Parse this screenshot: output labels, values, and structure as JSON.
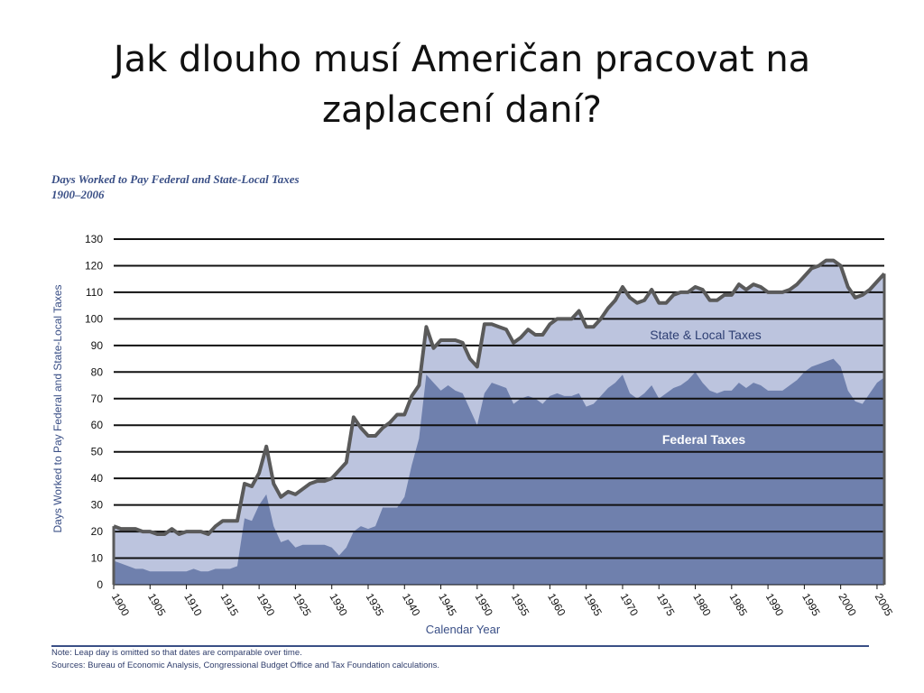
{
  "slide": {
    "title_line1": "Jak dlouho musí Američan pracovat na",
    "title_line2": "zaplacení daní?"
  },
  "chart_data": {
    "type": "area",
    "title_line1": "Days Worked to Pay Federal and State-Local Taxes",
    "title_line2": "1900–2006",
    "ylabel": "Days Worked to Pay Federal and State-Local Taxes",
    "xlabel": "Calendar Year",
    "ylim": [
      0,
      130
    ],
    "yticks": [
      0,
      10,
      20,
      30,
      40,
      50,
      60,
      70,
      80,
      90,
      100,
      110,
      120,
      130
    ],
    "xlim": [
      1900,
      2006
    ],
    "xticks": [
      1900,
      1905,
      1910,
      1915,
      1920,
      1925,
      1930,
      1935,
      1940,
      1945,
      1950,
      1955,
      1960,
      1965,
      1970,
      1975,
      1980,
      1985,
      1990,
      1995,
      2000,
      2005
    ],
    "grid": true,
    "colors": {
      "federal": "#6f80ad",
      "state_local": "#bcc4de",
      "outline": "#5a5a5a",
      "title": "#3a4f86"
    },
    "series": [
      {
        "name": "Federal Taxes",
        "x": [
          1900,
          1901,
          1902,
          1903,
          1904,
          1905,
          1906,
          1907,
          1908,
          1909,
          1910,
          1911,
          1912,
          1913,
          1914,
          1915,
          1916,
          1917,
          1918,
          1919,
          1920,
          1921,
          1922,
          1923,
          1924,
          1925,
          1926,
          1927,
          1928,
          1929,
          1930,
          1931,
          1932,
          1933,
          1934,
          1935,
          1936,
          1937,
          1938,
          1939,
          1940,
          1941,
          1942,
          1943,
          1944,
          1945,
          1946,
          1947,
          1948,
          1949,
          1950,
          1951,
          1952,
          1953,
          1954,
          1955,
          1956,
          1957,
          1958,
          1959,
          1960,
          1961,
          1962,
          1963,
          1964,
          1965,
          1966,
          1967,
          1968,
          1969,
          1970,
          1971,
          1972,
          1973,
          1974,
          1975,
          1976,
          1977,
          1978,
          1979,
          1980,
          1981,
          1982,
          1983,
          1984,
          1985,
          1986,
          1987,
          1988,
          1989,
          1990,
          1991,
          1992,
          1993,
          1994,
          1995,
          1996,
          1997,
          1998,
          1999,
          2000,
          2001,
          2002,
          2003,
          2004,
          2005,
          2006
        ],
        "values": [
          9,
          8,
          7,
          6,
          6,
          5,
          5,
          5,
          5,
          5,
          5,
          6,
          5,
          5,
          6,
          6,
          6,
          7,
          25,
          24,
          30,
          34,
          22,
          16,
          17,
          14,
          15,
          15,
          15,
          15,
          14,
          11,
          14,
          20,
          22,
          21,
          22,
          29,
          29,
          29,
          33,
          45,
          55,
          79,
          76,
          73,
          75,
          73,
          72,
          66,
          60,
          72,
          76,
          75,
          74,
          68,
          70,
          71,
          70,
          68,
          71,
          72,
          71,
          71,
          72,
          67,
          68,
          71,
          74,
          76,
          79,
          72,
          70,
          72,
          75,
          70,
          72,
          74,
          75,
          77,
          80,
          76,
          73,
          72,
          73,
          73,
          76,
          74,
          76,
          75,
          73,
          73,
          73,
          75,
          77,
          80,
          82,
          83,
          84,
          85,
          82,
          73,
          69,
          68,
          72,
          76,
          78
        ]
      },
      {
        "name": "State & Local Taxes",
        "x": [
          1900,
          1901,
          1902,
          1903,
          1904,
          1905,
          1906,
          1907,
          1908,
          1909,
          1910,
          1911,
          1912,
          1913,
          1914,
          1915,
          1916,
          1917,
          1918,
          1919,
          1920,
          1921,
          1922,
          1923,
          1924,
          1925,
          1926,
          1927,
          1928,
          1929,
          1930,
          1931,
          1932,
          1933,
          1934,
          1935,
          1936,
          1937,
          1938,
          1939,
          1940,
          1941,
          1942,
          1943,
          1944,
          1945,
          1946,
          1947,
          1948,
          1949,
          1950,
          1951,
          1952,
          1953,
          1954,
          1955,
          1956,
          1957,
          1958,
          1959,
          1960,
          1961,
          1962,
          1963,
          1964,
          1965,
          1966,
          1967,
          1968,
          1969,
          1970,
          1971,
          1972,
          1973,
          1974,
          1975,
          1976,
          1977,
          1978,
          1979,
          1980,
          1981,
          1982,
          1983,
          1984,
          1985,
          1986,
          1987,
          1988,
          1989,
          1990,
          1991,
          1992,
          1993,
          1994,
          1995,
          1996,
          1997,
          1998,
          1999,
          2000,
          2001,
          2002,
          2003,
          2004,
          2005,
          2006
        ],
        "values": [
          13,
          13,
          14,
          15,
          14,
          15,
          14,
          14,
          16,
          14,
          15,
          14,
          15,
          14,
          16,
          18,
          18,
          17,
          13,
          13,
          12,
          18,
          16,
          17,
          18,
          20,
          21,
          23,
          24,
          24,
          26,
          32,
          32,
          43,
          37,
          35,
          34,
          30,
          32,
          35,
          31,
          26,
          20,
          18,
          13,
          19,
          17,
          19,
          19,
          19,
          22,
          26,
          22,
          22,
          22,
          23,
          23,
          25,
          24,
          26,
          27,
          28,
          29,
          29,
          31,
          30,
          29,
          29,
          30,
          31,
          33,
          36,
          36,
          35,
          36,
          36,
          34,
          35,
          35,
          33,
          32,
          35,
          34,
          35,
          36,
          36,
          37,
          37,
          37,
          37,
          37,
          37,
          37,
          36,
          36,
          36,
          37,
          37,
          38,
          37,
          38,
          39,
          39,
          41,
          39,
          38,
          39
        ]
      }
    ],
    "annotations": [
      "State & Local Taxes",
      "Federal Taxes"
    ]
  },
  "footer": {
    "note": "Note: Leap day is omitted so that dates are comparable over time.",
    "sources": "Sources: Bureau of Economic Analysis, Congressional Budget Office and Tax Foundation calculations."
  }
}
